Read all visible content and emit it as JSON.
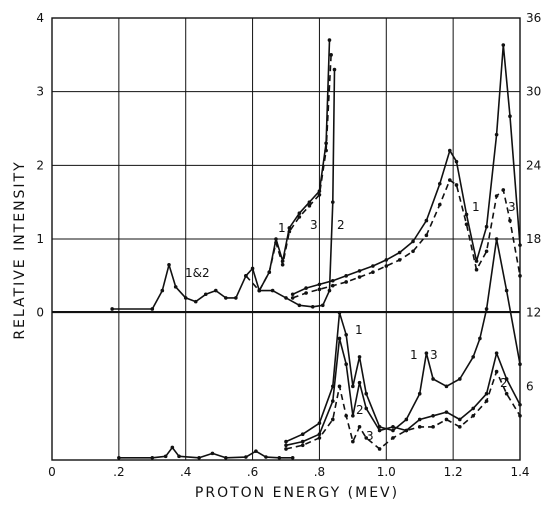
{
  "chart_data": {
    "type": "line",
    "title": "",
    "xlabel": "PROTON ENERGY (MEV)",
    "ylabel": "RELATIVE INTENSITY",
    "grid": true,
    "x_ticks": [
      "0",
      ".2",
      ".4",
      ".6",
      ".8",
      "1.0",
      "1.2",
      "1.4"
    ],
    "x_tick_values": [
      0,
      0.2,
      0.4,
      0.6,
      0.8,
      1.0,
      1.2,
      1.4
    ],
    "xlim": [
      0,
      1.4
    ],
    "y_left_ticks": [
      "0",
      "1",
      "2",
      "3",
      "4"
    ],
    "y_left_tick_values": [
      0,
      1,
      2,
      3,
      4
    ],
    "ylim_left": [
      -2,
      4
    ],
    "y_right_ticks": [
      "6",
      "12",
      "18",
      "24",
      "30",
      "36"
    ],
    "y_right_tick_values": [
      6,
      12,
      18,
      24,
      30,
      36
    ],
    "ylim_right": [
      0,
      36
    ],
    "upper_group": {
      "axis": "right",
      "series": [
        {
          "label": "1",
          "style": "solid",
          "x": [
            0.72,
            0.76,
            0.8,
            0.84,
            0.88,
            0.92,
            0.96,
            1.0,
            1.04,
            1.08,
            1.12,
            1.16,
            1.19,
            1.21,
            1.24,
            1.27,
            1.3,
            1.33,
            1.35,
            1.37,
            1.4
          ],
          "y": [
            13.5,
            14.0,
            14.3,
            14.6,
            15.0,
            15.4,
            15.8,
            16.3,
            16.9,
            17.8,
            19.5,
            22.5,
            25.2,
            24.3,
            20.0,
            16.2,
            19.0,
            26.5,
            33.8,
            28.0,
            17.5
          ]
        },
        {
          "label": "3",
          "style": "dashed",
          "x": [
            0.72,
            0.76,
            0.8,
            0.84,
            0.88,
            0.92,
            0.96,
            1.0,
            1.04,
            1.08,
            1.12,
            1.16,
            1.19,
            1.21,
            1.24,
            1.27,
            1.3,
            1.33,
            1.35,
            1.37,
            1.4
          ],
          "y": [
            13.2,
            13.6,
            13.9,
            14.2,
            14.5,
            14.9,
            15.3,
            15.8,
            16.3,
            17.0,
            18.3,
            20.8,
            22.8,
            22.4,
            19.2,
            15.5,
            17.0,
            21.5,
            22.0,
            19.5,
            15.0
          ]
        }
      ]
    },
    "lower_group": {
      "axis": "left",
      "series": [
        {
          "label": "1",
          "style": "solid",
          "x": [
            0.7,
            0.75,
            0.8,
            0.84,
            0.86,
            0.88,
            0.9,
            0.92,
            0.94,
            0.98,
            1.02,
            1.06,
            1.1,
            1.12,
            1.14,
            1.18,
            1.22,
            1.26,
            1.28,
            1.3,
            1.33,
            1.36,
            1.4
          ],
          "y": [
            -1.75,
            -1.65,
            -1.5,
            -1.0,
            0.0,
            -0.3,
            -1.0,
            -0.6,
            -1.1,
            -1.55,
            -1.6,
            -1.45,
            -1.1,
            -0.55,
            -0.9,
            -1.0,
            -0.9,
            -0.6,
            -0.35,
            0.05,
            1.0,
            0.3,
            -0.7
          ]
        },
        {
          "label": "2",
          "style": "solid",
          "x": [
            0.7,
            0.75,
            0.8,
            0.84,
            0.86,
            0.88,
            0.9,
            0.92,
            0.94,
            0.98,
            1.02,
            1.06,
            1.1,
            1.14,
            1.18,
            1.22,
            1.26,
            1.3,
            1.33,
            1.36,
            1.4
          ],
          "y": [
            -1.8,
            -1.75,
            -1.65,
            -1.2,
            -0.35,
            -0.7,
            -1.4,
            -0.95,
            -1.3,
            -1.6,
            -1.55,
            -1.6,
            -1.45,
            -1.4,
            -1.35,
            -1.45,
            -1.3,
            -1.1,
            -0.55,
            -0.9,
            -1.25
          ]
        },
        {
          "label": "3",
          "style": "dashed",
          "x": [
            0.7,
            0.75,
            0.8,
            0.84,
            0.86,
            0.88,
            0.9,
            0.92,
            0.94,
            0.98,
            1.02,
            1.06,
            1.1,
            1.14,
            1.18,
            1.22,
            1.26,
            1.3,
            1.33,
            1.36,
            1.4
          ],
          "y": [
            -1.85,
            -1.8,
            -1.7,
            -1.45,
            -1.0,
            -1.4,
            -1.75,
            -1.55,
            -1.7,
            -1.85,
            -1.7,
            -1.6,
            -1.55,
            -1.55,
            -1.45,
            -1.55,
            -1.4,
            -1.2,
            -0.8,
            -1.1,
            -1.4
          ]
        },
        {
          "label": "",
          "style": "solid",
          "x": [
            0.2,
            0.3,
            0.34,
            0.36,
            0.38,
            0.44,
            0.48,
            0.52,
            0.58,
            0.61,
            0.64,
            0.68,
            0.72
          ],
          "y": [
            -1.97,
            -1.97,
            -1.95,
            -1.83,
            -1.95,
            -1.97,
            -1.91,
            -1.97,
            -1.96,
            -1.88,
            -1.96,
            -1.97,
            -1.97
          ]
        }
      ]
    },
    "low_energy_group": {
      "axis": "left",
      "series": [
        {
          "label": "1",
          "style": "solid",
          "x": [
            0.18,
            0.3,
            0.33,
            0.35,
            0.37,
            0.4,
            0.43,
            0.46,
            0.49,
            0.52,
            0.55,
            0.58,
            0.6,
            0.62,
            0.65,
            0.67,
            0.69,
            0.71,
            0.74,
            0.77,
            0.8,
            0.82,
            0.83
          ],
          "y": [
            0.05,
            0.05,
            0.3,
            0.65,
            0.35,
            0.2,
            0.15,
            0.25,
            0.3,
            0.2,
            0.2,
            0.5,
            0.6,
            0.3,
            0.55,
            1.0,
            0.7,
            1.15,
            1.35,
            1.5,
            1.65,
            2.3,
            3.7
          ]
        },
        {
          "label": "3",
          "style": "dashed",
          "x": [
            0.58,
            0.62,
            0.65,
            0.67,
            0.69,
            0.71,
            0.74,
            0.77,
            0.8,
            0.82,
            0.835
          ],
          "y": [
            0.5,
            0.3,
            0.55,
            0.95,
            0.65,
            1.1,
            1.3,
            1.45,
            1.6,
            2.2,
            3.5
          ]
        },
        {
          "label": "2",
          "style": "solid",
          "x": [
            0.62,
            0.66,
            0.7,
            0.74,
            0.78,
            0.81,
            0.83,
            0.84,
            0.845
          ],
          "y": [
            0.3,
            0.3,
            0.2,
            0.1,
            0.08,
            0.1,
            0.3,
            1.5,
            3.3
          ]
        }
      ]
    },
    "annotations": {
      "lbl_182": "1&2",
      "lbl_a1": "1",
      "lbl_a3": "3",
      "lbl_a2": "2",
      "lbl_u1": "1",
      "lbl_u3": "3",
      "lbl_l1a": "1",
      "lbl_l2a": "2",
      "lbl_l3a": "3",
      "lbl_l1b": "1",
      "lbl_l3b": "3",
      "lbl_l2b": "2"
    }
  }
}
